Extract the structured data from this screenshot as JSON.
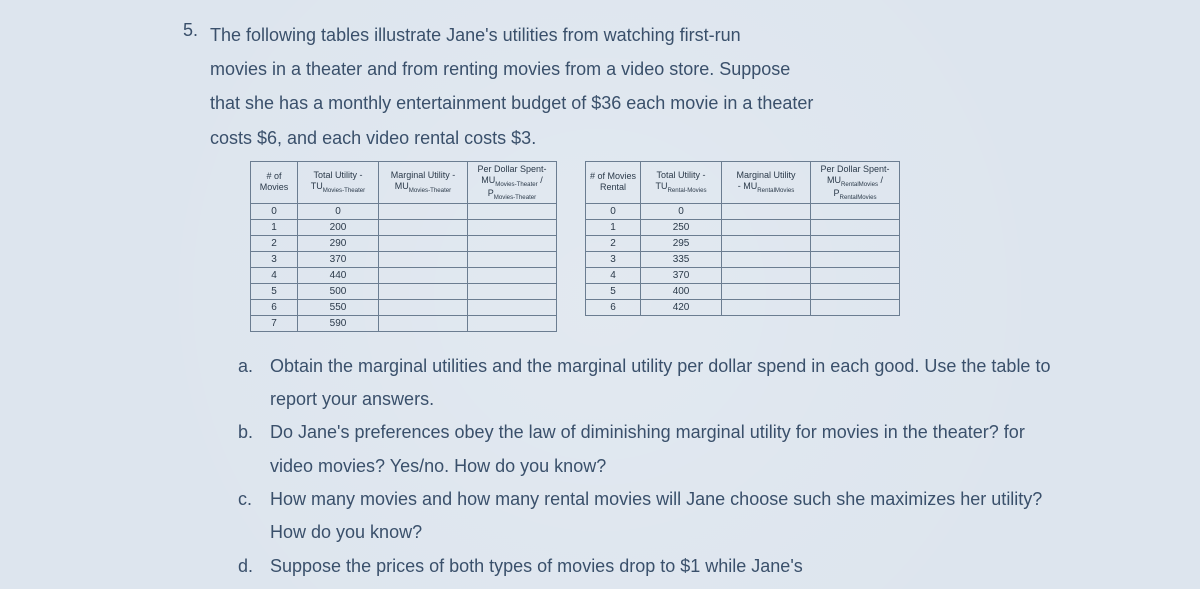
{
  "question_number": "5.",
  "intro_lines": [
    "The following tables illustrate Jane's utilities from watching first-run",
    "movies in a theater and from renting movies from a video store. Suppose",
    "that she has a monthly entertainment budget of $36 each movie in a theater",
    "costs $6, and each video rental costs $3."
  ],
  "theater_table": {
    "headers": {
      "c1_line1": "# of",
      "c1_line2": "Movies",
      "c2_line1": "Total Utility -",
      "c2_line2": "TU",
      "c2_sub": "Movies-Theater",
      "c3_line1": "Marginal Utility -",
      "c3_line2": "MU",
      "c3_sub": "Movies-Theater",
      "c4_line1": "Per Dollar Spent-",
      "c4_line2a": "MU",
      "c4_sub_a": "Movies-Theater",
      "c4_slash": " /",
      "c4_line3a": "P",
      "c4_sub_b": "Movies-Theater"
    },
    "rows": [
      {
        "q": "0",
        "tu": "0",
        "mu": "",
        "pd": ""
      },
      {
        "q": "1",
        "tu": "200",
        "mu": "",
        "pd": ""
      },
      {
        "q": "2",
        "tu": "290",
        "mu": "",
        "pd": ""
      },
      {
        "q": "3",
        "tu": "370",
        "mu": "",
        "pd": ""
      },
      {
        "q": "4",
        "tu": "440",
        "mu": "",
        "pd": ""
      },
      {
        "q": "5",
        "tu": "500",
        "mu": "",
        "pd": ""
      },
      {
        "q": "6",
        "tu": "550",
        "mu": "",
        "pd": ""
      },
      {
        "q": "7",
        "tu": "590",
        "mu": "",
        "pd": ""
      }
    ]
  },
  "rental_table": {
    "headers": {
      "c1_line1": "# of Movies",
      "c1_line2": "Rental",
      "c2_line1": "Total Utility -",
      "c2_line2": "TU",
      "c2_sub": "Rental-Movies",
      "c3_line1": "Marginal Utility",
      "c3_line2": "- MU",
      "c3_sub": "RentalMovies",
      "c4_line1": "Per Dollar Spent-",
      "c4_line2a": "MU",
      "c4_sub_a": "RentalMovies",
      "c4_slash": " /",
      "c4_line3a": "P",
      "c4_sub_b": "RentalMovies"
    },
    "rows": [
      {
        "q": "0",
        "tu": "0",
        "mu": "",
        "pd": ""
      },
      {
        "q": "1",
        "tu": "250",
        "mu": "",
        "pd": ""
      },
      {
        "q": "2",
        "tu": "295",
        "mu": "",
        "pd": ""
      },
      {
        "q": "3",
        "tu": "335",
        "mu": "",
        "pd": ""
      },
      {
        "q": "4",
        "tu": "370",
        "mu": "",
        "pd": ""
      },
      {
        "q": "5",
        "tu": "400",
        "mu": "",
        "pd": ""
      },
      {
        "q": "6",
        "tu": "420",
        "mu": "",
        "pd": ""
      }
    ]
  },
  "subparts": [
    {
      "label": "a.",
      "text": "Obtain the marginal utilities and the marginal utility per dollar spend in each good. Use the table to report your answers."
    },
    {
      "label": "b.",
      "text": "Do Jane's preferences obey the law of diminishing marginal utility for movies in the theater? for video movies? Yes/no. How do you know?"
    },
    {
      "label": "c.",
      "text": "How many movies and how many rental movies will Jane choose such she maximizes her utility? How do you know?"
    },
    {
      "label": "d.",
      "text": "Suppose the prices of both types of movies drop to $1 while Jane's"
    }
  ]
}
